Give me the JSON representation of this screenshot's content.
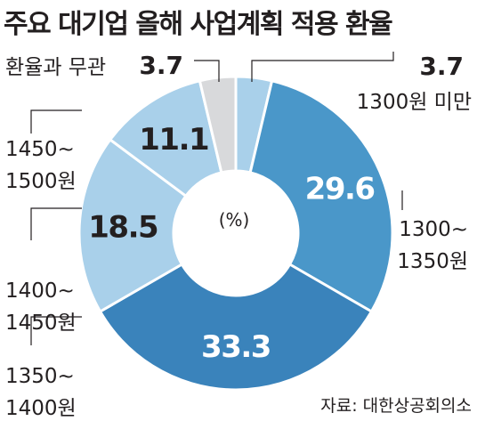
{
  "title": "주요 대기업 올해 사업계획 적용 환율",
  "source": "자료: 대한상공회의소",
  "chart_data": {
    "type": "pie",
    "unit": "(%)",
    "slices": [
      {
        "label": "1300원 미만",
        "value": 3.7,
        "value_text": "3.7",
        "color": "#a9d0ea"
      },
      {
        "label": "1300~1350원",
        "value": 29.6,
        "value_text": "29.6",
        "color": "#4a97c9"
      },
      {
        "label": "1350~1400원",
        "value": 33.3,
        "value_text": "33.3",
        "color": "#3a83bb"
      },
      {
        "label": "1400~1450원",
        "value": 18.5,
        "value_text": "18.5",
        "color": "#a9d0ea"
      },
      {
        "label": "1450~1500원",
        "value": 11.1,
        "value_text": "11.1",
        "color": "#a9d0ea"
      },
      {
        "label": "환율과 무관",
        "value": 3.7,
        "value_text": "3.7",
        "color": "#d8d9db"
      }
    ]
  }
}
